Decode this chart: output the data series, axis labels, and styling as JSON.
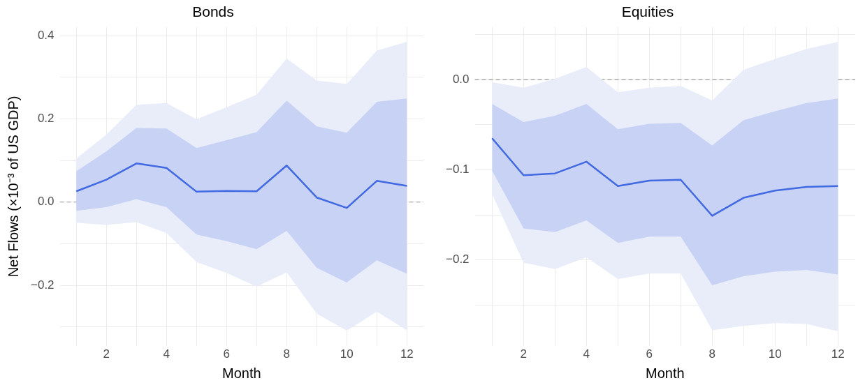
{
  "chart_data": [
    {
      "type": "line",
      "title": "Bonds",
      "xlabel": "Month",
      "ylabel": "Net Flows (×10⁻³ of US GDP)",
      "x": [
        1,
        2,
        3,
        4,
        5,
        6,
        7,
        8,
        9,
        10,
        11,
        12
      ],
      "series": [
        {
          "color": "#4169e1",
          "values": [
            0.026,
            0.054,
            0.093,
            0.082,
            0.025,
            0.027,
            0.026,
            0.088,
            0.011,
            -0.014,
            0.051,
            0.039
          ],
          "lower": [
            -0.021,
            -0.012,
            0.007,
            -0.012,
            -0.078,
            -0.094,
            -0.113,
            -0.069,
            -0.158,
            -0.193,
            -0.14,
            -0.172
          ],
          "upper": [
            0.074,
            0.122,
            0.178,
            0.177,
            0.13,
            0.149,
            0.168,
            0.244,
            0.182,
            0.167,
            0.241,
            0.249
          ]
        },
        {
          "color": "#e9edfa",
          "values": [
            null,
            null,
            null,
            null,
            null,
            null,
            null,
            null,
            null,
            null,
            null,
            null
          ],
          "lower": [
            -0.05,
            -0.055,
            -0.048,
            -0.074,
            -0.144,
            -0.17,
            -0.203,
            -0.169,
            -0.268,
            -0.309,
            -0.263,
            -0.308
          ],
          "upper": [
            0.105,
            0.162,
            0.234,
            0.238,
            0.199,
            0.228,
            0.258,
            0.345,
            0.292,
            0.284,
            0.364,
            0.385
          ]
        }
      ],
      "xlim": [
        0.45,
        12.55
      ],
      "xticks": [
        {
          "value": 1,
          "label": null
        },
        2,
        {
          "value": 3,
          "label": null
        },
        4,
        {
          "value": 5,
          "label": null
        },
        6,
        {
          "value": 7,
          "label": null
        },
        8,
        {
          "value": 9,
          "label": null
        },
        10,
        {
          "value": 11,
          "label": null
        },
        12
      ],
      "ylim": [
        -0.345,
        0.42
      ],
      "yticks": [
        {
          "value": -0.3,
          "label": null
        },
        {
          "value": -0.2,
          "label": "−0.2"
        },
        {
          "value": -0.1,
          "label": null
        },
        {
          "value": 0,
          "label": "0.0"
        },
        {
          "value": 0.1,
          "label": null
        },
        {
          "value": 0.2,
          "label": "0.2"
        },
        {
          "value": 0.3,
          "label": null
        },
        {
          "value": 0.4,
          "label": "0.4"
        }
      ],
      "ref_lines": [
        {
          "axis": "y",
          "value": 0,
          "color": "#999999",
          "line_style": "dashed"
        }
      ],
      "grid": true,
      "marker": "none"
    },
    {
      "type": "line",
      "title": "Equities",
      "xlabel": "Month",
      "x": [
        1,
        2,
        3,
        4,
        5,
        6,
        7,
        8,
        9,
        10,
        11,
        12
      ],
      "series": [
        {
          "color": "#4169e1",
          "values": [
            -0.065,
            -0.106,
            -0.104,
            -0.091,
            -0.118,
            -0.112,
            -0.111,
            -0.151,
            -0.131,
            -0.123,
            -0.119,
            -0.118
          ],
          "lower": [
            -0.101,
            -0.165,
            -0.169,
            -0.156,
            -0.181,
            -0.174,
            -0.174,
            -0.228,
            -0.218,
            -0.213,
            -0.211,
            -0.216
          ],
          "upper": [
            -0.027,
            -0.047,
            -0.04,
            -0.027,
            -0.055,
            -0.049,
            -0.048,
            -0.073,
            -0.045,
            -0.035,
            -0.026,
            -0.021
          ]
        },
        {
          "color": "#e9edfa",
          "values": [
            null,
            null,
            null,
            null,
            null,
            null,
            null,
            null,
            null,
            null,
            null,
            null
          ],
          "lower": [
            -0.127,
            -0.203,
            -0.21,
            -0.197,
            -0.221,
            -0.215,
            -0.215,
            -0.278,
            -0.273,
            -0.27,
            -0.271,
            -0.279
          ],
          "upper": [
            -0.003,
            -0.009,
            0.001,
            0.014,
            -0.014,
            -0.009,
            -0.007,
            -0.023,
            0.011,
            0.023,
            0.034,
            0.042
          ]
        }
      ],
      "xlim": [
        0.45,
        12.55
      ],
      "xticks": [
        {
          "value": 1,
          "label": null
        },
        2,
        {
          "value": 3,
          "label": null
        },
        4,
        {
          "value": 5,
          "label": null
        },
        6,
        {
          "value": 7,
          "label": null
        },
        8,
        {
          "value": 9,
          "label": null
        },
        10,
        {
          "value": 11,
          "label": null
        },
        12
      ],
      "ylim": [
        -0.295,
        0.058
      ],
      "yticks": [
        {
          "value": -0.25,
          "label": null
        },
        {
          "value": -0.2,
          "label": "−0.2"
        },
        {
          "value": -0.15,
          "label": null
        },
        {
          "value": -0.1,
          "label": "−0.1"
        },
        {
          "value": -0.05,
          "label": null
        },
        {
          "value": 0,
          "label": "0.0"
        },
        {
          "value": 0.05,
          "label": null
        }
      ],
      "ref_lines": [
        {
          "axis": "y",
          "value": 0,
          "color": "#999999",
          "line_style": "dashed"
        }
      ],
      "grid": true,
      "marker": "none"
    }
  ]
}
